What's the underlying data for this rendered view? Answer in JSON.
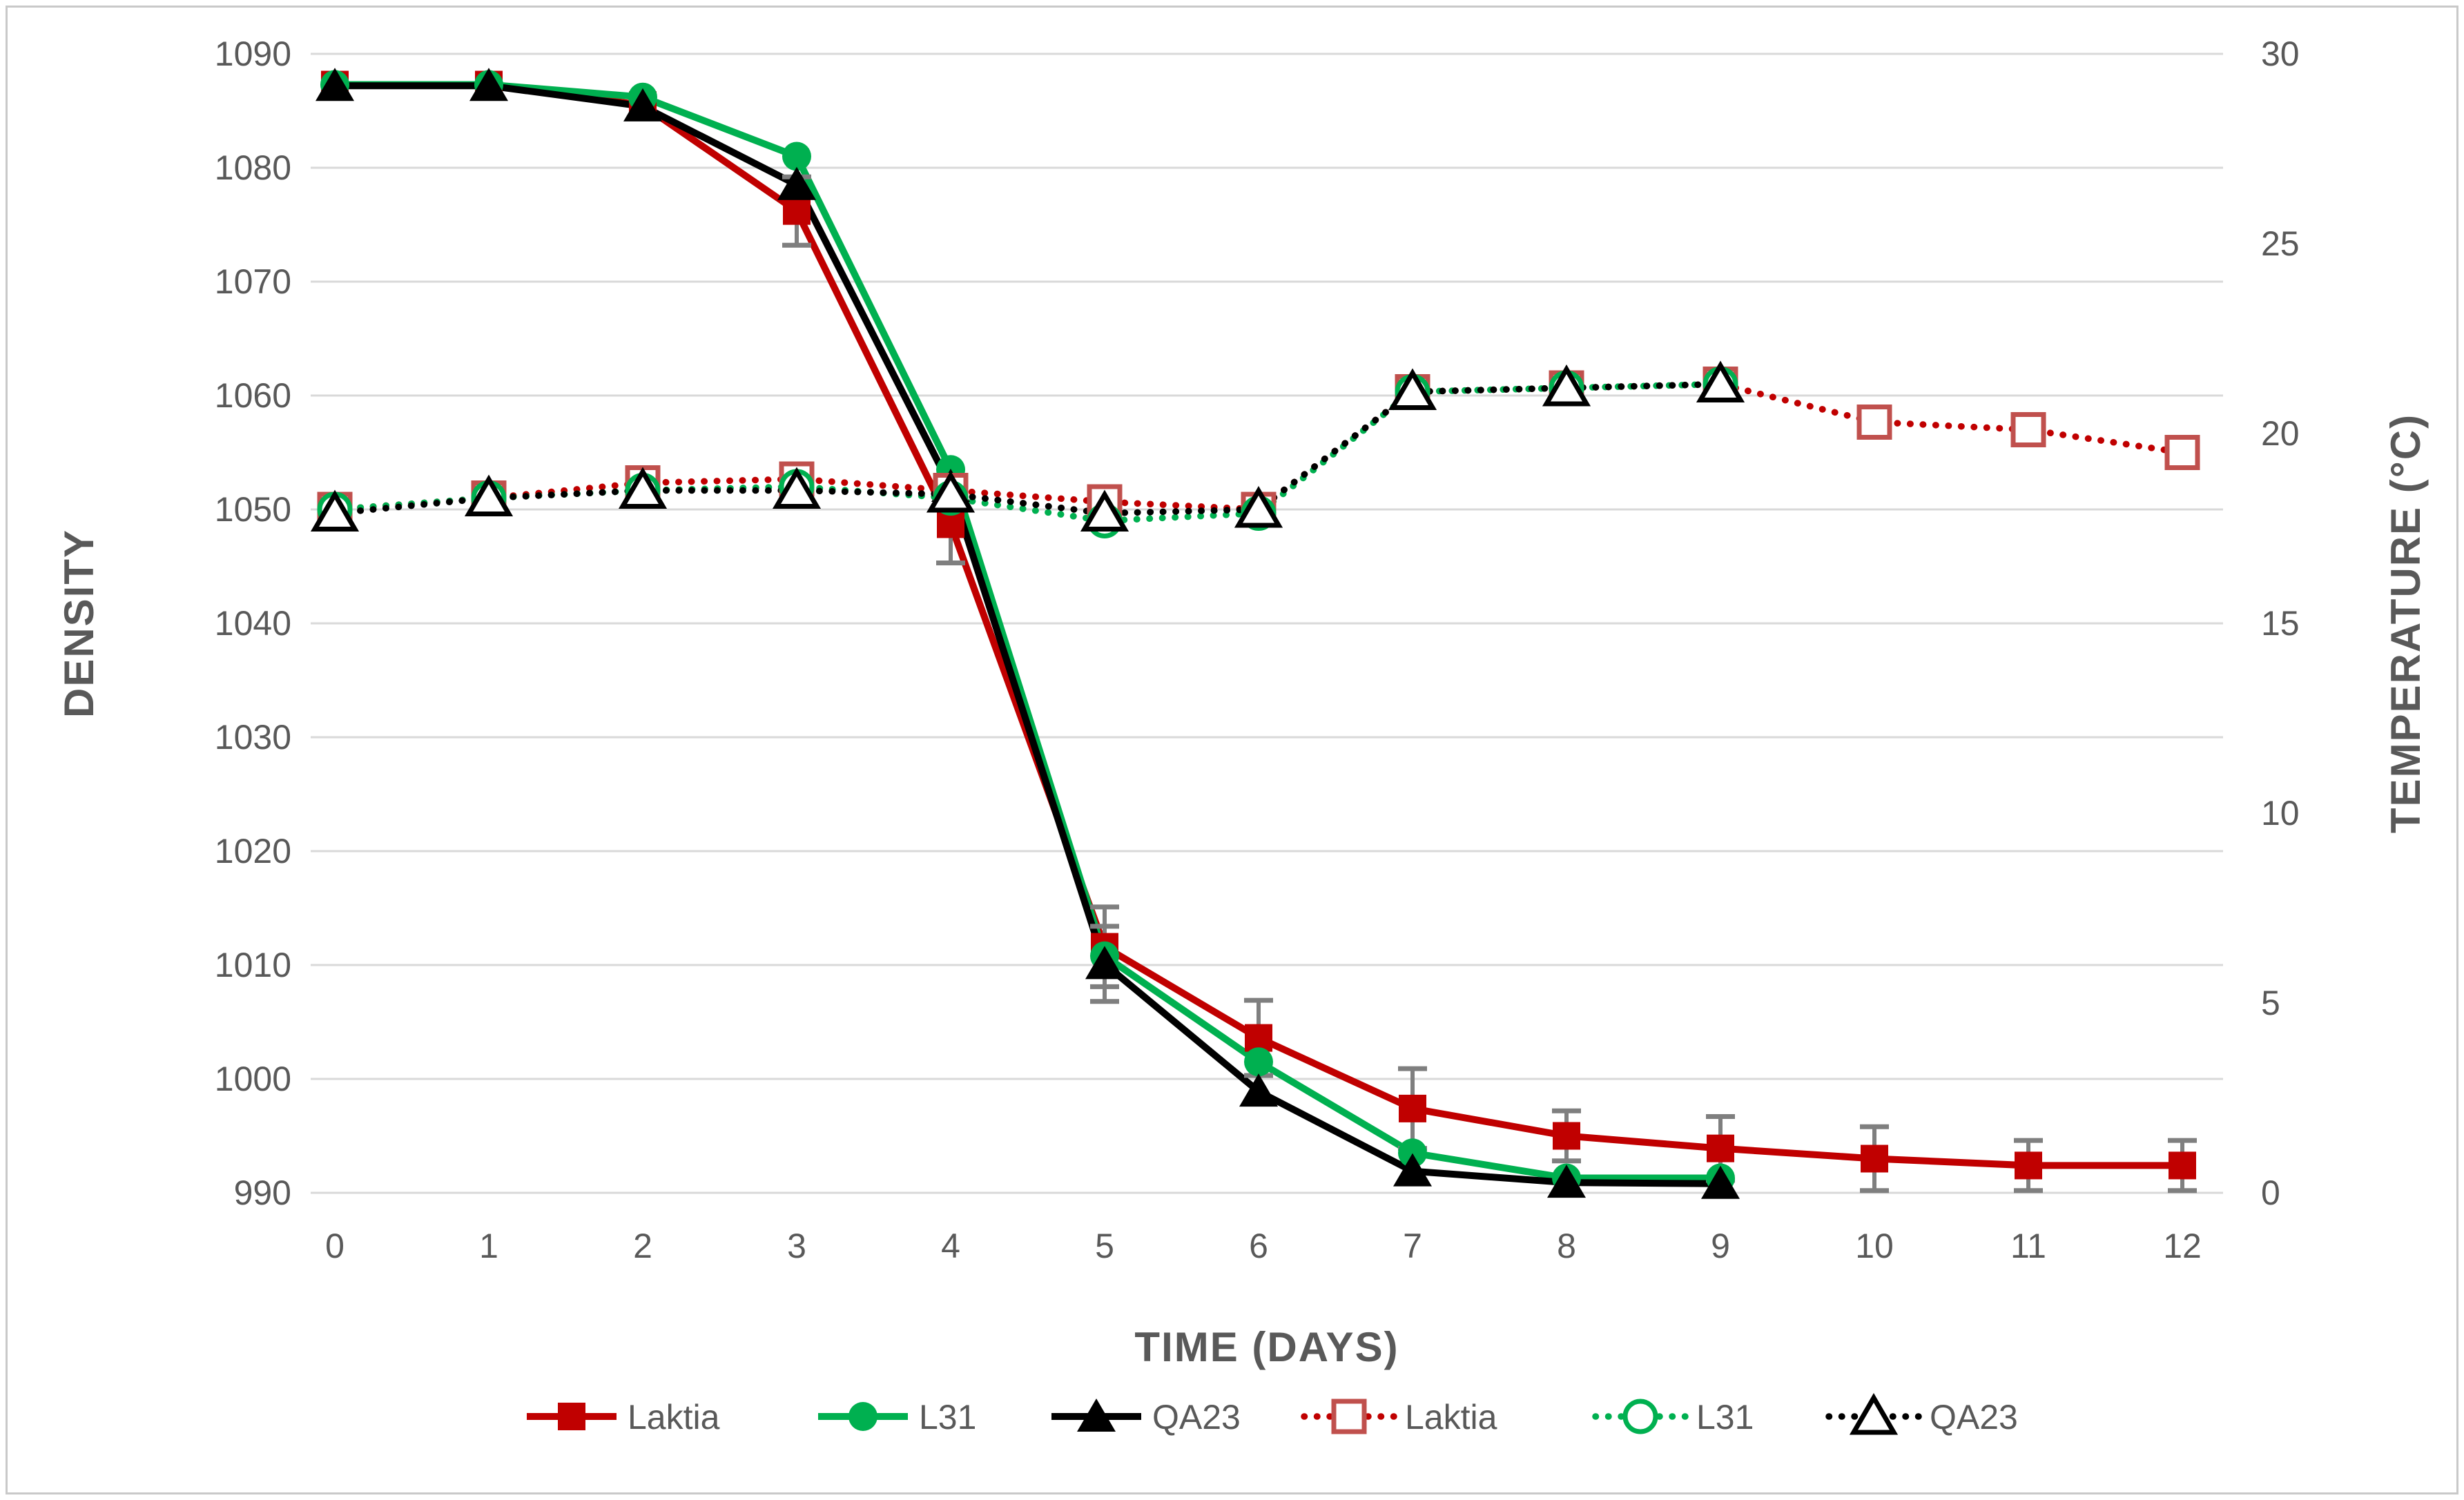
{
  "chart_data": {
    "type": "line",
    "title": "",
    "xlabel": "TIME (DAYS)",
    "ylabel_left": "DENSITY",
    "ylabel_right": "TEMPERATURE (°C)",
    "x": [
      0,
      1,
      2,
      3,
      4,
      5,
      6,
      7,
      8,
      9,
      10,
      11,
      12
    ],
    "x_tick_labels": [
      "0",
      "1",
      "2",
      "3",
      "4",
      "5",
      "6",
      "7",
      "8",
      "9",
      "10",
      "11",
      "12"
    ],
    "y_left_axis": {
      "min": 990,
      "max": 1090,
      "step": 10,
      "tick_labels": [
        "1090",
        "1080",
        "1070",
        "1060",
        "1050",
        "1040",
        "1030",
        "1020",
        "1010",
        "1000",
        "990"
      ]
    },
    "y_right_axis": {
      "min": 0,
      "max": 30,
      "step": 5,
      "tick_labels": [
        "30",
        "25",
        "20",
        "15",
        "10",
        "5",
        "0"
      ]
    },
    "grid": true,
    "legend_position": "bottom",
    "series": [
      {
        "name": "Laktia",
        "axis": "left",
        "line": "solid",
        "marker": "square",
        "marker_fill": "filled",
        "color": "#C00000",
        "values": [
          1087.3,
          1087.3,
          1085.5,
          1076.2,
          1048.7,
          1011.6,
          1003.6,
          997.4,
          995.0,
          993.9,
          993.0,
          992.4,
          992.4
        ],
        "err": [
          0,
          0,
          0,
          3.0,
          3.4,
          3.5,
          3.3,
          3.5,
          2.2,
          2.8,
          2.8,
          2.2,
          2.2
        ]
      },
      {
        "name": "L31",
        "axis": "left",
        "line": "solid",
        "marker": "circle",
        "marker_fill": "filled",
        "color": "#00B050",
        "values": [
          1087.3,
          1087.3,
          1086.2,
          1081.0,
          1053.5,
          1010.8,
          1001.5,
          993.5,
          991.3,
          991.3
        ],
        "err": [
          0,
          0,
          0,
          0,
          0,
          0,
          0,
          0,
          0,
          0
        ]
      },
      {
        "name": "QA23",
        "axis": "left",
        "line": "solid",
        "marker": "triangle",
        "marker_fill": "filled",
        "color": "#000000",
        "values": [
          1087.2,
          1087.2,
          1085.4,
          1078.5,
          1052.0,
          1010.1,
          998.9,
          991.9,
          990.9,
          990.8
        ],
        "err": [
          0,
          0,
          0,
          0,
          0,
          3.3,
          0,
          0,
          0,
          0
        ]
      },
      {
        "name": "Laktia",
        "axis": "right",
        "line": "dotted",
        "marker": "square",
        "marker_fill": "open",
        "color": "#C00000",
        "marker_color": "#C0504D",
        "values": [
          18.0,
          18.3,
          18.7,
          18.8,
          18.5,
          18.2,
          18.0,
          21.1,
          21.2,
          21.3,
          20.3,
          20.1,
          19.5
        ],
        "err": [
          0,
          0,
          0,
          0,
          0,
          0,
          0,
          0.12,
          0.12,
          0.12,
          0.12,
          0.12,
          0.12
        ]
      },
      {
        "name": "L31",
        "axis": "right",
        "line": "dotted",
        "marker": "circle",
        "marker_fill": "open",
        "color": "#00B050",
        "marker_color": "#00B050",
        "values": [
          18.0,
          18.3,
          18.5,
          18.6,
          18.3,
          17.7,
          17.9,
          21.1,
          21.2,
          21.3
        ],
        "err": [
          0,
          0,
          0,
          0,
          0,
          0,
          0,
          0,
          0,
          0
        ]
      },
      {
        "name": "QA23",
        "axis": "right",
        "line": "dotted",
        "marker": "triangle",
        "marker_fill": "open",
        "color": "#000000",
        "marker_color": "#000000",
        "values": [
          17.9,
          18.3,
          18.5,
          18.5,
          18.4,
          17.9,
          18.0,
          21.1,
          21.2,
          21.3
        ],
        "err": [
          0,
          0,
          0,
          0,
          0,
          0,
          0,
          0,
          0,
          0
        ]
      }
    ]
  },
  "colors": {
    "red": "#C00000",
    "green": "#00B050",
    "black": "#000000",
    "open_red": "#C0504D",
    "gridline": "#D9D9D9",
    "tick_text": "#595959",
    "error_bar": "#7F7F7F",
    "figure_border": "#C9C9C9",
    "background": "#FFFFFF"
  }
}
